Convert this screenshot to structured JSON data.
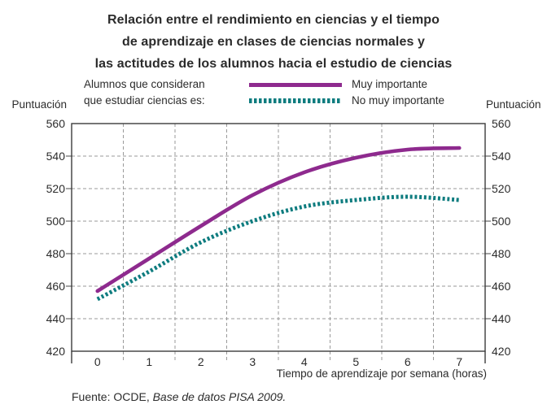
{
  "header": {
    "title_lines": [
      "Relación entre el rendimiento en ciencias y el tiempo",
      "de aprendizaje en clases de ciencias normales y",
      "las actitudes de los alumnos hacia el estudio de ciencias"
    ]
  },
  "legend": {
    "intro_lines": [
      "Alumnos que consideran",
      "que estudiar ciencias es:"
    ],
    "items": [
      {
        "label": "Muy importante",
        "color": "#8E2A8E",
        "style": "solid"
      },
      {
        "label": "No muy importante",
        "color": "#0E7C7F",
        "style": "dotted"
      }
    ]
  },
  "axes": {
    "y_label_left": "Puntuación",
    "y_label_right": "Puntuación",
    "x_label": "Tiempo de aprendizaje por semana (horas)"
  },
  "source": {
    "prefix": "Fuente: OCDE, ",
    "italic": "Base de datos PISA 2009."
  },
  "colors": {
    "purple": "#8E2A8E",
    "teal": "#0E7C7F",
    "grid": "#9A9A9A",
    "axis": "#3B3B3B",
    "text": "#2C2C2C"
  },
  "chart_data": {
    "type": "line",
    "title": "Relación entre el rendimiento en ciencias y el tiempo de aprendizaje en clases de ciencias normales y las actitudes de los alumnos hacia el estudio de ciencias",
    "xlabel": "Tiempo de aprendizaje por semana (horas)",
    "ylabel": "Puntuación",
    "x": [
      0,
      1,
      2,
      3,
      4,
      5,
      6,
      7
    ],
    "series": [
      {
        "name": "Muy importante",
        "color": "#8E2A8E",
        "dash": "solid",
        "values": [
          457,
          477,
          497,
          516,
          530,
          539,
          544,
          545
        ]
      },
      {
        "name": "No muy importante",
        "color": "#0E7C7F",
        "dash": "dotted",
        "values": [
          452,
          469,
          487,
          500,
          509,
          513,
          515,
          513
        ]
      }
    ],
    "ylim": [
      420,
      560
    ],
    "yticks": [
      420,
      440,
      460,
      480,
      500,
      520,
      540,
      560
    ],
    "xlim": [
      -0.5,
      7.5
    ],
    "grid_x_positions": [
      0.5,
      1.5,
      2.5,
      3.5,
      4.5,
      5.5,
      6.5
    ],
    "grid": "dashed",
    "legend_position": "top"
  }
}
